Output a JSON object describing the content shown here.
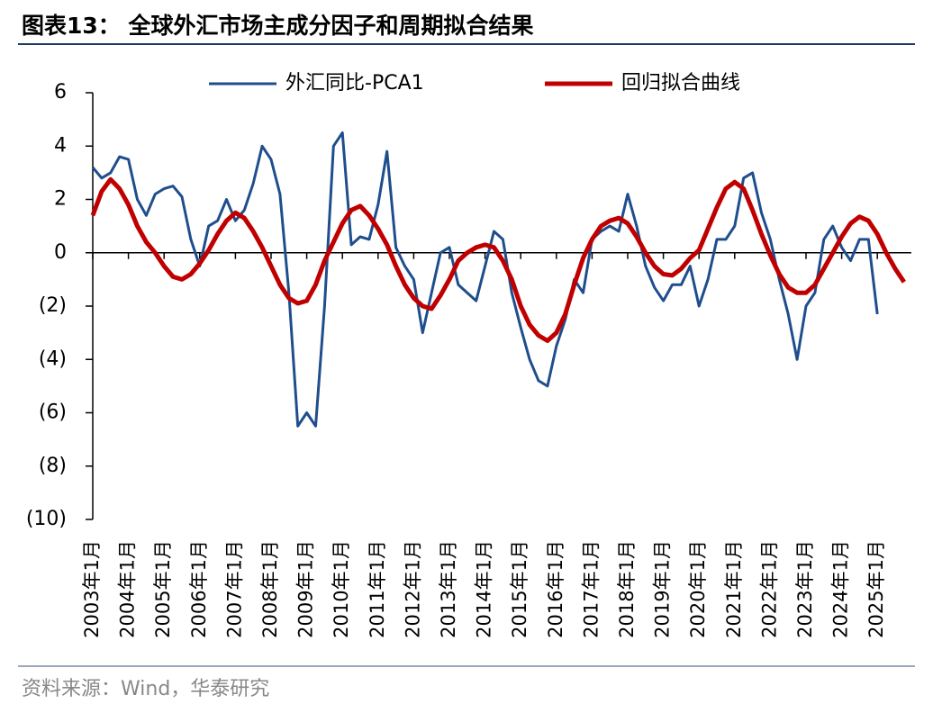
{
  "chart_data": {
    "type": "line",
    "title": "图表13：  全球外汇市场主成分因子和周期拟合结果",
    "source": "资料来源：Wind，华泰研究",
    "categories": [
      "2003年1月",
      null,
      null,
      null,
      "2004年1月",
      null,
      null,
      null,
      "2005年1月",
      null,
      null,
      null,
      "2006年1月",
      null,
      null,
      null,
      "2007年1月",
      null,
      null,
      null,
      "2008年1月",
      null,
      null,
      null,
      "2009年1月",
      null,
      null,
      null,
      "2010年1月",
      null,
      null,
      null,
      "2011年1月",
      null,
      null,
      null,
      "2012年1月",
      null,
      null,
      null,
      "2013年1月",
      null,
      null,
      null,
      "2014年1月",
      null,
      null,
      null,
      "2015年1月",
      null,
      null,
      null,
      "2016年1月",
      null,
      null,
      null,
      "2017年1月",
      null,
      null,
      null,
      "2018年1月",
      null,
      null,
      null,
      "2019年1月",
      null,
      null,
      null,
      "2020年1月",
      null,
      null,
      null,
      "2021年1月",
      null,
      null,
      null,
      "2022年1月",
      null,
      null,
      null,
      "2023年1月",
      null,
      null,
      null,
      "2024年1月",
      null,
      null,
      null,
      "2025年1月",
      null,
      null,
      null
    ],
    "series": [
      {
        "name": "外汇同比-PCA1",
        "color": "#1f4e8c",
        "values": [
          3.2,
          2.8,
          3.0,
          3.6,
          3.5,
          2.0,
          1.4,
          2.2,
          2.4,
          2.5,
          2.1,
          0.5,
          -0.5,
          1.0,
          1.2,
          2.0,
          1.2,
          1.6,
          2.6,
          4.0,
          3.5,
          2.2,
          -1.5,
          -6.5,
          -6.0,
          -6.5,
          -2.0,
          4.0,
          4.5,
          0.3,
          0.6,
          0.5,
          1.8,
          3.8,
          0.2,
          -0.5,
          -1.0,
          -3.0,
          -1.5,
          0.0,
          0.2,
          -1.2,
          -1.5,
          -1.8,
          -0.5,
          0.8,
          0.5,
          -1.5,
          -2.8,
          -4.0,
          -4.8,
          -5.0,
          -3.5,
          -2.5,
          -1.0,
          -1.5,
          0.5,
          0.8,
          1.0,
          0.8,
          2.2,
          1.0,
          -0.5,
          -1.3,
          -1.8,
          -1.2,
          -1.2,
          -0.5,
          -2.0,
          -1.0,
          0.5,
          0.5,
          1.0,
          2.8,
          3.0,
          1.5,
          0.5,
          -1.0,
          -2.3,
          -4.0,
          -2.0,
          -1.5,
          0.5,
          1.0,
          0.2,
          -0.3,
          0.5,
          0.5,
          -2.3,
          null,
          null,
          null
        ]
      },
      {
        "name": "回归拟合曲线",
        "color": "#c00000",
        "values": [
          1.4,
          2.3,
          2.75,
          2.4,
          1.8,
          1.0,
          0.4,
          0.0,
          -0.5,
          -0.9,
          -1.0,
          -0.8,
          -0.4,
          0.1,
          0.7,
          1.2,
          1.5,
          1.3,
          0.8,
          0.2,
          -0.5,
          -1.2,
          -1.7,
          -1.9,
          -1.8,
          -1.2,
          -0.3,
          0.4,
          1.1,
          1.6,
          1.75,
          1.4,
          0.9,
          0.3,
          -0.5,
          -1.2,
          -1.7,
          -2.0,
          -2.1,
          -1.6,
          -1.0,
          -0.3,
          0.0,
          0.2,
          0.3,
          0.2,
          -0.3,
          -1.0,
          -2.0,
          -2.7,
          -3.1,
          -3.3,
          -3.0,
          -2.3,
          -1.2,
          -0.2,
          0.5,
          1.0,
          1.2,
          1.3,
          1.1,
          0.6,
          0.0,
          -0.5,
          -0.8,
          -0.85,
          -0.6,
          -0.2,
          0.1,
          0.9,
          1.7,
          2.4,
          2.65,
          2.4,
          1.6,
          0.7,
          -0.1,
          -0.8,
          -1.3,
          -1.5,
          -1.5,
          -1.2,
          -0.6,
          0.0,
          0.6,
          1.1,
          1.35,
          1.2,
          0.7,
          0.0,
          -0.6,
          -1.1
        ]
      }
    ],
    "ylim": [
      -10,
      6
    ],
    "yticks": [
      6,
      4,
      2,
      0,
      {
        "value": -2,
        "label": "(2)"
      },
      {
        "value": -4,
        "label": "(4)"
      },
      {
        "value": -6,
        "label": "(6)"
      },
      {
        "value": -8,
        "label": "(8)"
      },
      {
        "value": -10,
        "label": "(10)"
      }
    ],
    "legend": "top"
  }
}
